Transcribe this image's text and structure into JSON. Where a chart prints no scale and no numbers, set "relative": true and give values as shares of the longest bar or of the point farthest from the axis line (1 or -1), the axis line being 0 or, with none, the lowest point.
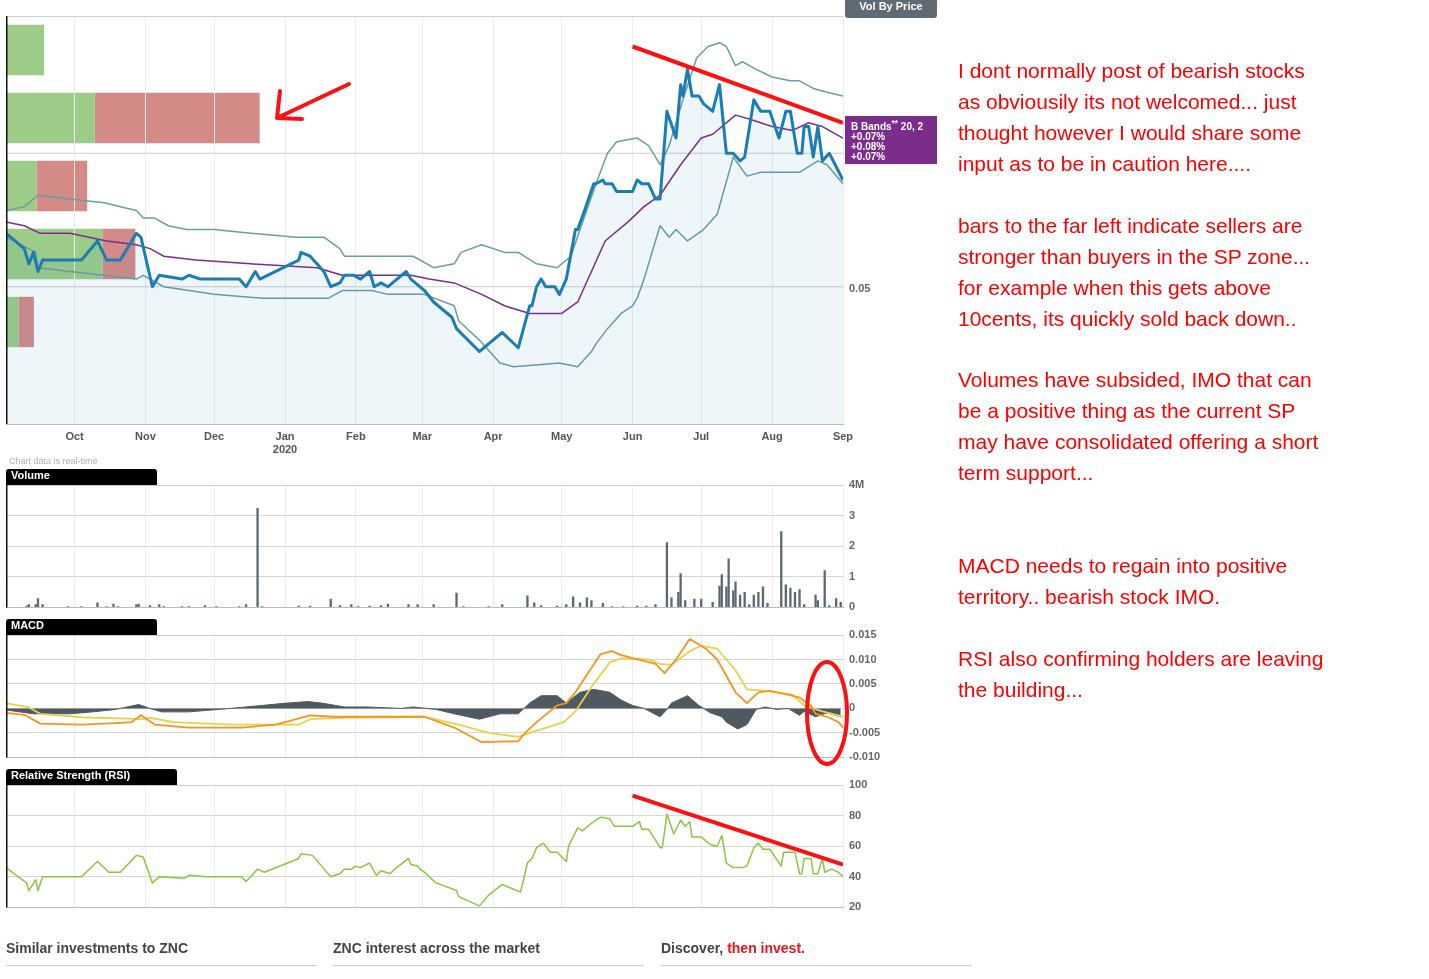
{
  "chart_data": [
    {
      "type": "bar",
      "orientation": "horizontal",
      "stacked": true,
      "relative": true,
      "categories": [
        null,
        null,
        null,
        null,
        null
      ],
      "series": [
        {
          "color": "#9ccc87",
          "values": [
            0.15,
            0.35,
            0.12,
            0.38,
            0.05
          ]
        },
        {
          "color": "#d48a87",
          "values": [
            0,
            0.65,
            0.2,
            0.13,
            0.06
          ]
        }
      ]
    },
    {
      "type": "line",
      "relative": true,
      "grid": true,
      "xlim": [
        "2019-09-01",
        "2020-09-01"
      ],
      "xticks": [
        {
          "value": "2019-10-01",
          "label": "Oct"
        },
        {
          "value": "2019-11-01",
          "label": "Nov"
        },
        {
          "value": "2019-12-01",
          "label": "Dec"
        },
        {
          "value": "2020-01-01",
          "label": "Jan\n2020"
        },
        {
          "value": "2020-02-01",
          "label": "Feb"
        },
        {
          "value": "2020-03-01",
          "label": "Mar"
        },
        {
          "value": "2020-04-01",
          "label": "Apr"
        },
        {
          "value": "2020-05-01",
          "label": "May"
        },
        {
          "value": "2020-06-01",
          "label": "Jun"
        },
        {
          "value": "2020-07-01",
          "label": "Jul"
        },
        {
          "value": "2020-08-01",
          "label": "Aug"
        },
        {
          "value": "2020-09-01",
          "label": "Sep"
        }
      ],
      "ref_lines": [
        {
          "axis": "y",
          "value": 0.71,
          "label": null
        },
        {
          "axis": "y",
          "value": 0.36,
          "label": null
        }
      ],
      "annotations": [
        "Vol By Price",
        "B Bands$^{**}$ 20, 2",
        "+0.07%",
        "+0.08%",
        "+0.07%",
        "Chart data is real-time",
        "I dont normally post of bearish stocks\nas obviousily its not welcomed... just\nthought however I would share some\ninput as to be in caution here....",
        "bars to the far left indicate sellers are\nstronger than buyers in the SP zone...\nfor example when this gets above\n10cents, its quickly sold back down..",
        "Volumes have subsided, IMO that can\nbe a positive thing as the current SP\nmay have consolidated offering a short\nterm support...",
        "MACD needs to regain into positive\nterritory.. bearish stock IMO.",
        "RSI also confirming holders are leaving\nthe building...",
        "0.05"
      ],
      "series": [
        {
          "type": "area",
          "color": "#1b7db5",
          "x": [
            "2019-09-01",
            "2019-09-09",
            "2019-09-11",
            "2019-09-13",
            "2019-09-15",
            "2019-09-17",
            "2019-10-04",
            "2019-10-11",
            "2019-10-15",
            "2019-10-21",
            "2019-10-28",
            "2019-10-30",
            "2019-11-04",
            "2019-11-07",
            "2019-11-17",
            "2019-11-20",
            "2019-11-25",
            "2019-12-12",
            "2019-12-15",
            "2019-12-19",
            "2019-12-21",
            "2020-01-07",
            "2020-01-08",
            "2020-01-12",
            "2020-01-18",
            "2020-01-21",
            "2020-01-25",
            "2020-01-27",
            "2020-01-31",
            "2020-02-03",
            "2020-02-07",
            "2020-02-09",
            "2020-02-12",
            "2020-02-15",
            "2020-02-17",
            "2020-02-23",
            "2020-02-25",
            "2020-02-27",
            "2020-02-29",
            "2020-03-02",
            "2020-03-06",
            "2020-03-14",
            "2020-03-16",
            "2020-03-26",
            "2020-03-30",
            "2020-04-05",
            "2020-04-12",
            "2020-04-17",
            "2020-04-18",
            "2020-04-20",
            "2020-04-22",
            "2020-04-24",
            "2020-04-28",
            "2020-04-30",
            "2020-05-03",
            "2020-05-07",
            "2020-05-08",
            "2020-05-11",
            "2020-05-15",
            "2020-05-16",
            "2020-05-19",
            "2020-05-20",
            "2020-05-23",
            "2020-05-25",
            "2020-06-01",
            "2020-06-03",
            "2020-06-05",
            "2020-06-08",
            "2020-06-11",
            "2020-06-13",
            "2020-06-16",
            "2020-06-20",
            "2020-06-22",
            "2020-06-23",
            "2020-06-25",
            "2020-06-27",
            "2020-06-30",
            "2020-07-02",
            "2020-07-06",
            "2020-07-09",
            "2020-07-12",
            "2020-07-15",
            "2020-07-18",
            "2020-07-20",
            "2020-07-24",
            "2020-07-27",
            "2020-07-31",
            "2020-08-04",
            "2020-08-07",
            "2020-08-09",
            "2020-08-12",
            "2020-08-14",
            "2020-08-15",
            "2020-08-17",
            "2020-08-19",
            "2020-08-21",
            "2020-08-23",
            "2020-08-26",
            "2020-09-01"
          ],
          "values": [
            0.5,
            0.46,
            0.42,
            0.45,
            0.4,
            0.43,
            0.43,
            0.48,
            0.43,
            0.43,
            0.5,
            0.49,
            0.36,
            0.39,
            0.38,
            0.39,
            0.38,
            0.38,
            0.36,
            0.4,
            0.38,
            0.43,
            0.45,
            0.44,
            0.4,
            0.36,
            0.37,
            0.39,
            0.39,
            0.38,
            0.4,
            0.36,
            0.37,
            0.36,
            0.37,
            0.4,
            0.38,
            0.37,
            0.36,
            0.35,
            0.32,
            0.28,
            0.25,
            0.19,
            0.21,
            0.24,
            0.2,
            0.31,
            0.31,
            0.36,
            0.38,
            0.36,
            0.36,
            0.34,
            0.38,
            0.51,
            0.51,
            0.56,
            0.63,
            0.63,
            0.64,
            0.63,
            0.63,
            0.61,
            0.61,
            0.64,
            0.63,
            0.63,
            0.59,
            0.59,
            0.82,
            0.75,
            0.89,
            0.86,
            0.93,
            0.86,
            0.86,
            0.84,
            0.82,
            0.89,
            0.71,
            0.71,
            0.69,
            0.7,
            0.85,
            0.82,
            0.82,
            0.75,
            0.82,
            0.82,
            0.71,
            0.71,
            0.78,
            0.78,
            0.7,
            0.78,
            0.69,
            0.71,
            0.64
          ]
        },
        {
          "color": "#6b9e9e",
          "x": [
            "2019-09-01",
            "2019-09-09",
            "2019-09-15",
            "2019-09-29",
            "2019-10-14",
            "2019-10-21",
            "2019-10-28",
            "2019-10-31",
            "2019-11-05",
            "2019-11-11",
            "2019-11-19",
            "2019-12-01",
            "2019-12-17",
            "2020-01-06",
            "2020-01-18",
            "2020-01-25",
            "2020-01-27",
            "2020-02-26",
            "2020-03-06",
            "2020-03-15",
            "2020-03-18",
            "2020-03-27",
            "2020-04-06",
            "2020-04-12",
            "2020-04-20",
            "2020-04-29",
            "2020-05-05",
            "2020-05-09",
            "2020-05-16",
            "2020-05-21",
            "2020-05-25",
            "2020-06-03",
            "2020-06-08",
            "2020-06-13",
            "2020-06-17",
            "2020-06-23",
            "2020-06-29",
            "2020-07-04",
            "2020-07-09",
            "2020-07-12",
            "2020-07-16",
            "2020-07-19",
            "2020-07-25",
            "2020-08-01",
            "2020-08-09",
            "2020-08-13",
            "2020-08-19",
            "2020-08-25",
            "2020-09-01"
          ],
          "values": [
            0.56,
            0.57,
            0.6,
            0.59,
            0.58,
            0.57,
            0.56,
            0.54,
            0.54,
            0.52,
            0.51,
            0.51,
            0.5,
            0.49,
            0.49,
            0.46,
            0.44,
            0.44,
            0.41,
            0.42,
            0.45,
            0.47,
            0.45,
            0.45,
            0.42,
            0.41,
            0.44,
            0.51,
            0.63,
            0.71,
            0.74,
            0.75,
            0.73,
            0.68,
            0.73,
            0.85,
            0.96,
            0.99,
            1,
            0.99,
            0.94,
            0.95,
            0.93,
            0.91,
            0.9,
            0.9,
            0.88,
            0.87,
            0.86
          ]
        },
        {
          "color": "#7b2d8b",
          "x": [
            "2019-09-01",
            "2019-09-09",
            "2019-09-16",
            "2019-09-29",
            "2019-10-15",
            "2019-10-28",
            "2019-11-03",
            "2019-11-09",
            "2019-11-23",
            "2019-12-17",
            "2020-01-15",
            "2020-01-26",
            "2020-02-25",
            "2020-03-04",
            "2020-03-15",
            "2020-03-27",
            "2020-04-06",
            "2020-04-17",
            "2020-04-26",
            "2020-05-01",
            "2020-05-08",
            "2020-05-20",
            "2020-05-30",
            "2020-06-06",
            "2020-06-13",
            "2020-06-22",
            "2020-07-01",
            "2020-07-06",
            "2020-07-16",
            "2020-07-22",
            "2020-08-01",
            "2020-08-10",
            "2020-08-17",
            "2020-08-23",
            "2020-09-01"
          ],
          "values": [
            0.53,
            0.52,
            0.5,
            0.5,
            0.48,
            0.47,
            0.46,
            0.44,
            0.43,
            0.42,
            0.41,
            0.39,
            0.39,
            0.38,
            0.37,
            0.34,
            0.31,
            0.29,
            0.29,
            0.29,
            0.32,
            0.48,
            0.53,
            0.57,
            0.6,
            0.68,
            0.75,
            0.76,
            0.81,
            0.8,
            0.78,
            0.77,
            0.79,
            0.78,
            0.75
          ]
        },
        {
          "color": "#6b9e9e",
          "x": [
            "2019-09-01",
            "2019-09-14",
            "2019-09-15",
            "2019-09-29",
            "2019-10-28",
            "2019-10-31",
            "2019-11-09",
            "2019-12-01",
            "2019-12-22",
            "2020-01-20",
            "2020-01-26",
            "2020-02-08",
            "2020-02-15",
            "2020-03-02",
            "2020-03-15",
            "2020-03-17",
            "2020-03-26",
            "2020-04-04",
            "2020-04-10",
            "2020-04-30",
            "2020-05-08",
            "2020-05-14",
            "2020-05-16",
            "2020-05-21",
            "2020-05-27",
            "2020-06-01",
            "2020-06-03",
            "2020-06-06",
            "2020-06-13",
            "2020-06-17",
            "2020-06-20",
            "2020-06-25",
            "2020-07-02",
            "2020-07-08",
            "2020-07-15",
            "2020-07-21",
            "2020-07-27",
            "2020-08-09",
            "2020-08-13",
            "2020-08-21",
            "2020-08-25",
            "2020-09-01"
          ],
          "values": [
            0.49,
            0.45,
            0.41,
            0.4,
            0.38,
            0.39,
            0.36,
            0.34,
            0.33,
            0.33,
            0.35,
            0.35,
            0.34,
            0.34,
            0.31,
            0.27,
            0.22,
            0.16,
            0.15,
            0.16,
            0.15,
            0.19,
            0.21,
            0.25,
            0.29,
            0.31,
            0.33,
            0.38,
            0.52,
            0.49,
            0.51,
            0.48,
            0.51,
            0.55,
            0.7,
            0.65,
            0.66,
            0.66,
            0.66,
            0.69,
            0.68,
            0.63
          ]
        },
        {
          "type": "line",
          "color": "#ff1010",
          "x": [
            "2020-06-01",
            "2020-09-01"
          ],
          "values": [
            0.99,
            0.79
          ]
        }
      ]
    },
    {
      "type": "bar",
      "title": "Volume",
      "grid": true,
      "tick_labels": "y",
      "xlim": [
        "2019-09-01",
        "2020-09-01"
      ],
      "xticks": [
        {
          "value": "2019-10-01",
          "label": null
        },
        {
          "value": "2019-11-01",
          "label": null
        },
        {
          "value": "2019-12-01",
          "label": null
        },
        {
          "value": "2020-01-01",
          "label": null
        },
        {
          "value": "2020-02-01",
          "label": null
        },
        {
          "value": "2020-03-01",
          "label": null
        },
        {
          "value": "2020-04-01",
          "label": null
        },
        {
          "value": "2020-05-01",
          "label": null
        },
        {
          "value": "2020-06-01",
          "label": null
        },
        {
          "value": "2020-07-01",
          "label": null
        },
        {
          "value": "2020-08-01",
          "label": null
        },
        {
          "value": "2020-09-01",
          "label": null
        }
      ],
      "ylim": [
        0,
        4
      ],
      "yticks": [
        0,
        1,
        2,
        3,
        {
          "value": 4,
          "label": "4M"
        }
      ],
      "x": [
        "2019-09-10",
        "2019-09-11",
        "2019-09-14",
        "2019-09-15",
        "2019-09-17",
        "2019-09-28",
        "2019-10-04",
        "2019-10-11",
        "2019-10-15",
        "2019-10-18",
        "2019-10-20",
        "2019-10-28",
        "2019-10-29",
        "2019-11-03",
        "2019-11-07",
        "2019-11-09",
        "2019-11-17",
        "2019-11-20",
        "2019-11-27",
        "2019-12-02",
        "2019-12-12",
        "2019-12-15",
        "2019-12-20",
        "2019-12-22",
        "2020-01-07",
        "2020-01-12",
        "2020-01-21",
        "2020-01-25",
        "2020-01-30",
        "2020-02-02",
        "2020-02-07",
        "2020-02-12",
        "2020-02-15",
        "2020-02-24",
        "2020-02-28",
        "2020-03-06",
        "2020-03-16",
        "2020-03-19",
        "2020-03-30",
        "2020-04-05",
        "2020-04-16",
        "2020-04-19",
        "2020-04-22",
        "2020-04-29",
        "2020-05-03",
        "2020-05-06",
        "2020-05-09",
        "2020-05-12",
        "2020-05-14",
        "2020-05-19",
        "2020-05-23",
        "2020-05-28",
        "2020-06-03",
        "2020-06-07",
        "2020-06-11",
        "2020-06-16",
        "2020-06-18",
        "2020-06-21",
        "2020-06-22",
        "2020-06-24",
        "2020-06-28",
        "2020-07-01",
        "2020-07-06",
        "2020-07-09",
        "2020-07-10",
        "2020-07-12",
        "2020-07-13",
        "2020-07-15",
        "2020-07-16",
        "2020-07-18",
        "2020-07-20",
        "2020-07-22",
        "2020-07-24",
        "2020-07-26",
        "2020-07-28",
        "2020-07-30",
        "2020-08-05",
        "2020-08-07",
        "2020-08-09",
        "2020-08-11",
        "2020-08-13",
        "2020-08-15",
        "2020-08-20",
        "2020-08-21",
        "2020-08-24",
        "2020-08-26",
        "2020-08-29",
        "2020-08-31"
      ],
      "series": [
        {
          "color": "#5d6970",
          "values": [
            0.05,
            0.1,
            0.1,
            0.3,
            0.1,
            0.04,
            0.04,
            0.16,
            0.04,
            0.12,
            0.04,
            0.1,
            0.12,
            0.07,
            0.1,
            0.04,
            0.04,
            0.04,
            0.07,
            0.04,
            0.04,
            0.1,
            3.25,
            0.04,
            0.05,
            0.05,
            0.28,
            0.07,
            0.1,
            0.04,
            0.05,
            0.07,
            0.12,
            0.1,
            0.1,
            0.1,
            0.48,
            0.04,
            0.04,
            0.1,
            0.39,
            0.16,
            0.07,
            0.05,
            0.1,
            0.36,
            0.16,
            0.32,
            0.23,
            0.14,
            0.04,
            0.04,
            0.05,
            0.05,
            0.1,
            2.13,
            0.32,
            0.5,
            1.12,
            0.23,
            0.28,
            0.28,
            0.18,
            0.71,
            1.08,
            0.68,
            1.6,
            0.55,
            0.85,
            0.41,
            0.5,
            0.1,
            0.41,
            0.5,
            0.68,
            0.14,
            2.49,
            0.75,
            0.64,
            0.5,
            0.59,
            0.1,
            0.41,
            0.23,
            1.21,
            0.07,
            0.3,
            0.18
          ]
        }
      ]
    },
    {
      "type": "line",
      "title": "MACD",
      "grid": true,
      "tick_labels": "y",
      "xlim": [
        "2019-09-01",
        "2020-09-01"
      ],
      "xticks": [
        {
          "value": "2019-10-01",
          "label": null
        },
        {
          "value": "2019-11-01",
          "label": null
        },
        {
          "value": "2019-12-01",
          "label": null
        },
        {
          "value": "2020-01-01",
          "label": null
        },
        {
          "value": "2020-02-01",
          "label": null
        },
        {
          "value": "2020-03-01",
          "label": null
        },
        {
          "value": "2020-04-01",
          "label": null
        },
        {
          "value": "2020-05-01",
          "label": null
        },
        {
          "value": "2020-06-01",
          "label": null
        },
        {
          "value": "2020-07-01",
          "label": null
        },
        {
          "value": "2020-08-01",
          "label": null
        },
        {
          "value": "2020-09-01",
          "label": null
        }
      ],
      "ylim": [
        -0.01,
        0.015
      ],
      "yticks": [
        {
          "value": -0.01,
          "label": "-0.010"
        },
        {
          "value": -0.005,
          "label": "-0.005"
        },
        0,
        {
          "value": 0.005,
          "label": "0.005"
        },
        {
          "value": 0.01,
          "label": "0.010"
        },
        {
          "value": 0.015,
          "label": "0.015"
        }
      ],
      "series": [
        {
          "type": "area",
          "color": "#4f5a60",
          "x": [
            "2019-09-01",
            "2019-09-13",
            "2019-09-29",
            "2019-10-09",
            "2019-10-19",
            "2019-10-29",
            "2019-11-03",
            "2019-11-08",
            "2019-11-20",
            "2019-12-08",
            "2020-01-02",
            "2020-01-11",
            "2020-01-17",
            "2020-01-27",
            "2020-02-06",
            "2020-02-21",
            "2020-02-26",
            "2020-03-07",
            "2020-03-15",
            "2020-03-26",
            "2020-04-04",
            "2020-04-12",
            "2020-04-17",
            "2020-04-22",
            "2020-04-29",
            "2020-05-03",
            "2020-05-09",
            "2020-05-15",
            "2020-05-22",
            "2020-05-27",
            "2020-06-01",
            "2020-06-06",
            "2020-06-13",
            "2020-06-16",
            "2020-06-18",
            "2020-06-25",
            "2020-06-30",
            "2020-07-05",
            "2020-07-10",
            "2020-07-12",
            "2020-07-17",
            "2020-07-21",
            "2020-07-25",
            "2020-07-29",
            "2020-08-03",
            "2020-08-08",
            "2020-08-13",
            "2020-08-15",
            "2020-08-20",
            "2020-08-25",
            "2020-08-31"
          ],
          "values": [
            -0.0003,
            -0.0011,
            -0.0011,
            -0.0007,
            -0.0002,
            0.0008,
            0,
            -0.0007,
            -0.0007,
            0,
            0.0011,
            0.0014,
            0.0011,
            0.0003,
            0.0003,
            0,
            0.0003,
            -0.0002,
            -0.0011,
            -0.0022,
            -0.0011,
            -0.0011,
            0.0011,
            0.0026,
            0.0026,
            0.0011,
            0.0033,
            0.0039,
            0.0033,
            0.0017,
            0.0006,
            0,
            -0.0017,
            -0.0002,
            0.0011,
            0.0026,
            0.0006,
            -0.0009,
            -0.0017,
            -0.0028,
            -0.0042,
            -0.0033,
            -0.0002,
            0.0003,
            -0.0002,
            0,
            -0.0014,
            -0.0006,
            -0.0017,
            -0.0009,
            -0.0017
          ]
        },
        {
          "color": "#f7941d",
          "x": [
            "2019-09-01",
            "2019-09-09",
            "2019-09-16",
            "2019-10-04",
            "2019-10-19",
            "2019-10-26",
            "2019-10-30",
            "2019-11-05",
            "2019-11-20",
            "2019-12-13",
            "2019-12-28",
            "2020-01-12",
            "2020-01-22",
            "2020-03-02",
            "2020-03-15",
            "2020-03-27",
            "2020-04-12",
            "2020-04-15",
            "2020-04-20",
            "2020-04-29",
            "2020-05-03",
            "2020-05-07",
            "2020-05-18",
            "2020-05-23",
            "2020-05-27",
            "2020-06-11",
            "2020-06-15",
            "2020-06-20",
            "2020-06-26",
            "2020-07-03",
            "2020-07-08",
            "2020-07-16",
            "2020-07-21",
            "2020-07-26",
            "2020-07-31",
            "2020-08-08",
            "2020-08-13",
            "2020-08-18",
            "2020-08-20",
            "2020-08-25",
            "2020-08-30",
            "2020-09-01"
          ],
          "values": [
            -0.0009,
            -0.0013,
            -0.0031,
            -0.0033,
            -0.003,
            -0.0028,
            -0.0014,
            -0.0033,
            -0.0039,
            -0.0039,
            -0.0033,
            -0.0014,
            -0.0017,
            -0.0017,
            -0.0039,
            -0.0069,
            -0.0067,
            -0.005,
            -0.0028,
            0.0006,
            0.0011,
            0.0033,
            0.0111,
            0.0117,
            0.0109,
            0.0091,
            0.0072,
            0.01,
            0.0142,
            0.0122,
            0.01,
            0.0033,
            0.0011,
            0.0033,
            0.0036,
            0.0028,
            0.0022,
            0.0006,
            -0.0011,
            -0.0017,
            -0.0028,
            -0.0039
          ]
        },
        {
          "color": "#e3d44a",
          "x": [
            "2019-09-01",
            "2019-09-11",
            "2019-09-16",
            "2019-10-04",
            "2019-10-31",
            "2019-11-03",
            "2019-11-13",
            "2019-12-08",
            "2020-01-07",
            "2020-01-12",
            "2020-01-27",
            "2020-03-02",
            "2020-03-17",
            "2020-03-30",
            "2020-04-12",
            "2020-04-17",
            "2020-05-02",
            "2020-05-07",
            "2020-05-14",
            "2020-05-22",
            "2020-05-27",
            "2020-06-08",
            "2020-06-13",
            "2020-06-18",
            "2020-06-26",
            "2020-07-01",
            "2020-07-08",
            "2020-07-16",
            "2020-07-21",
            "2020-07-29",
            "2020-08-10",
            "2020-08-15",
            "2020-08-23",
            "2020-09-01"
          ],
          "values": [
            0.0011,
            0.0002,
            -0.0011,
            -0.0018,
            -0.0022,
            -0.0019,
            -0.0028,
            -0.0033,
            -0.0033,
            -0.0022,
            -0.0019,
            -0.0017,
            -0.0033,
            -0.005,
            -0.0058,
            -0.005,
            -0.0028,
            -0.0006,
            0.0044,
            0.0094,
            0.0102,
            0.01,
            0.0091,
            0.0089,
            0.0117,
            0.0128,
            0.0122,
            0.0078,
            0.0039,
            0.0036,
            0.0028,
            0.0006,
            -0.0006,
            -0.0017
          ]
        }
      ]
    },
    {
      "type": "line",
      "title": "Relative Strength (RSI)",
      "grid": true,
      "tick_labels": "y",
      "xlim": [
        "2019-09-01",
        "2020-09-01"
      ],
      "xticks": [
        {
          "value": "2019-10-01",
          "label": null
        },
        {
          "value": "2019-11-01",
          "label": null
        },
        {
          "value": "2019-12-01",
          "label": null
        },
        {
          "value": "2020-01-01",
          "label": null
        },
        {
          "value": "2020-02-01",
          "label": null
        },
        {
          "value": "2020-03-01",
          "label": null
        },
        {
          "value": "2020-04-01",
          "label": null
        },
        {
          "value": "2020-05-01",
          "label": null
        },
        {
          "value": "2020-06-01",
          "label": null
        },
        {
          "value": "2020-07-01",
          "label": null
        },
        {
          "value": "2020-08-01",
          "label": null
        },
        {
          "value": "2020-09-01",
          "label": null
        }
      ],
      "ylim": [
        20,
        100
      ],
      "yticks": [
        20,
        40,
        60,
        80,
        100
      ],
      "annotations": [
        "Similar investments to ZNC",
        "ZNC interest across the market",
        "Discover,",
        "then invest."
      ],
      "x": [
        "2019-09-01",
        "2019-09-10",
        "2019-09-11",
        "2019-09-14",
        "2019-09-15",
        "2019-09-17",
        "2019-10-04",
        "2019-10-11",
        "2019-10-16",
        "2019-10-21",
        "2019-10-28",
        "2019-10-31",
        "2019-11-04",
        "2019-11-07",
        "2019-11-18",
        "2019-11-20",
        "2019-11-28",
        "2019-12-13",
        "2019-12-15",
        "2019-12-20",
        "2019-12-23",
        "2020-01-07",
        "2020-01-08",
        "2020-01-13",
        "2020-01-21",
        "2020-01-25",
        "2020-01-27",
        "2020-01-30",
        "2020-02-01",
        "2020-02-03",
        "2020-02-07",
        "2020-02-10",
        "2020-02-12",
        "2020-02-16",
        "2020-02-18",
        "2020-02-24",
        "2020-02-25",
        "2020-02-28",
        "2020-02-29",
        "2020-03-02",
        "2020-03-07",
        "2020-03-16",
        "2020-03-17",
        "2020-03-26",
        "2020-03-30",
        "2020-04-05",
        "2020-04-13",
        "2020-04-16",
        "2020-04-18",
        "2020-04-20",
        "2020-04-23",
        "2020-04-26",
        "2020-04-29",
        "2020-05-03",
        "2020-05-04",
        "2020-05-08",
        "2020-05-10",
        "2020-05-14",
        "2020-05-18",
        "2020-05-22",
        "2020-05-24",
        "2020-06-01",
        "2020-06-04",
        "2020-06-05",
        "2020-06-08",
        "2020-06-11",
        "2020-06-13",
        "2020-06-14",
        "2020-06-16",
        "2020-06-19",
        "2020-06-22",
        "2020-06-24",
        "2020-06-26",
        "2020-06-27",
        "2020-07-01",
        "2020-07-05",
        "2020-07-08",
        "2020-07-10",
        "2020-07-12",
        "2020-07-15",
        "2020-07-19",
        "2020-07-21",
        "2020-07-24",
        "2020-07-26",
        "2020-07-28",
        "2020-07-31",
        "2020-08-05",
        "2020-08-06",
        "2020-08-11",
        "2020-08-13",
        "2020-08-14",
        "2020-08-15",
        "2020-08-18",
        "2020-08-19",
        "2020-08-21",
        "2020-08-23",
        "2020-08-24",
        "2020-08-27",
        "2020-08-30",
        "2020-09-01"
      ],
      "series": [
        {
          "color": "#8cc63f",
          "values": [
            46,
            36,
            31,
            38,
            31,
            40,
            40,
            50,
            43,
            43,
            54,
            53,
            36,
            40,
            39,
            41,
            40,
            40,
            37,
            45,
            43,
            52,
            55,
            54,
            40,
            42,
            45,
            45,
            47,
            46,
            49,
            41,
            44,
            42,
            45,
            52,
            48,
            47,
            45,
            43,
            36,
            31,
            27,
            21,
            28,
            35,
            30,
            49,
            52,
            59,
            62,
            56,
            56,
            50,
            60,
            72,
            70,
            75,
            79,
            78,
            73,
            73,
            76,
            71,
            71,
            64,
            59,
            59,
            81,
            68,
            77,
            73,
            76,
            66,
            66,
            61,
            60,
            67,
            49,
            46,
            46,
            47,
            59,
            62,
            58,
            58,
            47,
            56,
            56,
            42,
            42,
            52,
            52,
            42,
            42,
            52,
            43,
            45,
            43,
            40
          ]
        },
        {
          "type": "line",
          "color": "#ff1010",
          "x": [
            "2020-06-01",
            "2020-09-01"
          ],
          "values": [
            93,
            48
          ]
        }
      ]
    }
  ]
}
